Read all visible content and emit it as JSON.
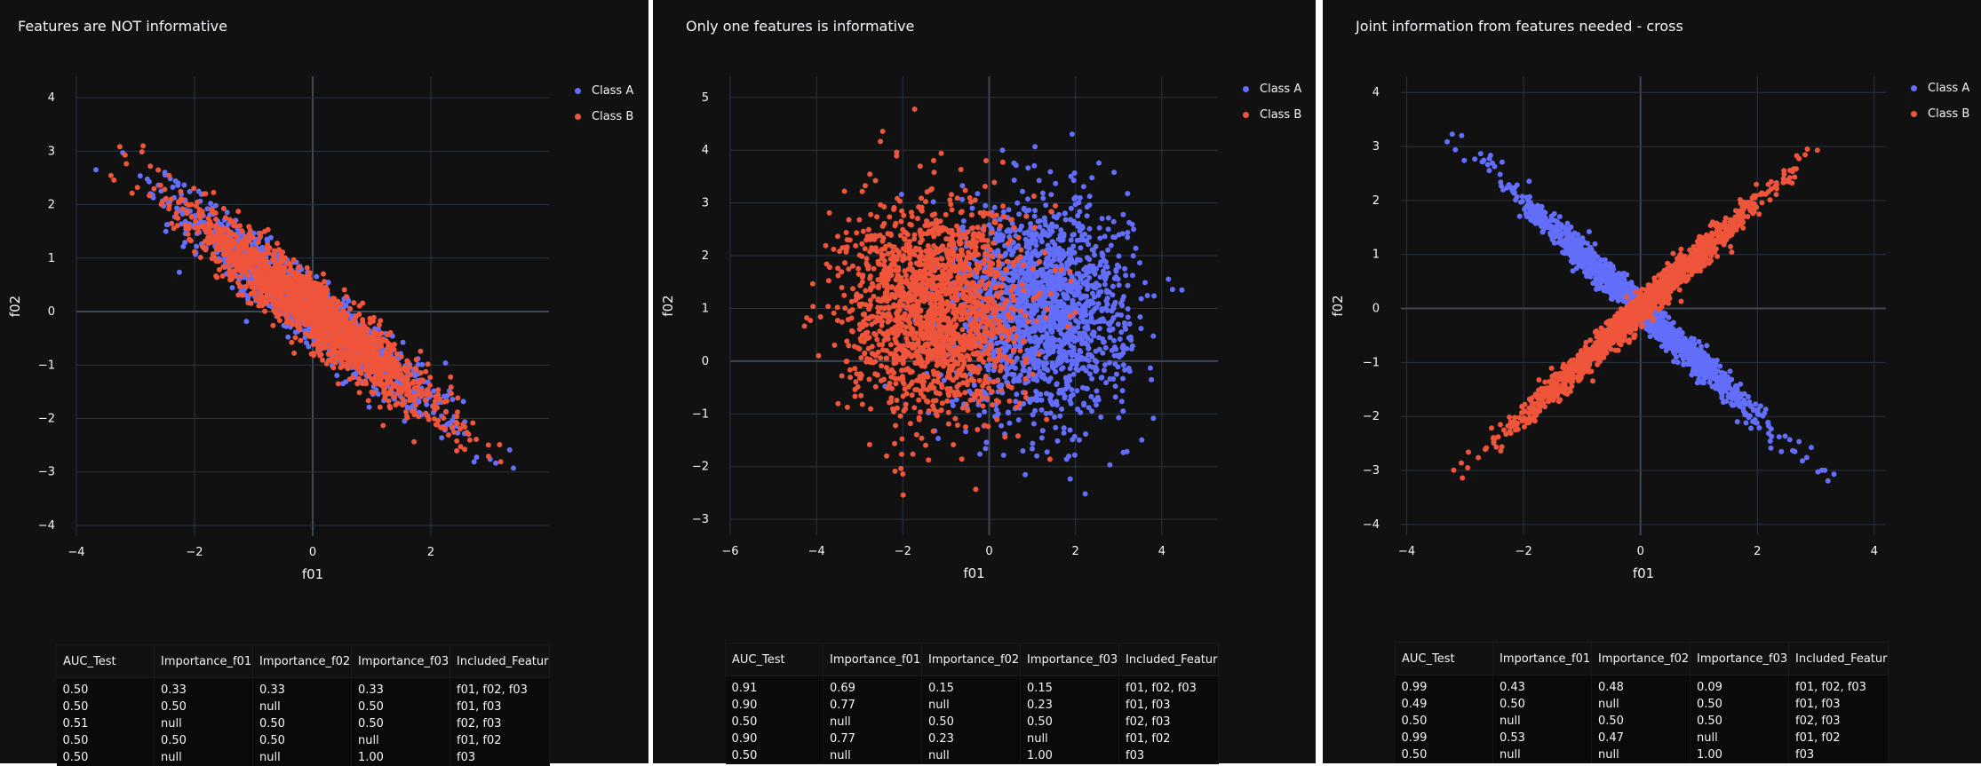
{
  "chart_data": [
    {
      "type": "scatter",
      "title": "Features are NOT informative",
      "xlabel": "f01",
      "ylabel": "f02",
      "xlim": [
        -4,
        4
      ],
      "ylim": [
        -4.2,
        4.4
      ],
      "xticks": [
        -4,
        -2,
        0,
        2
      ],
      "yticks": [
        -4,
        -3,
        -2,
        -1,
        0,
        1,
        2,
        3,
        4
      ],
      "grid": true,
      "legend_position": "top-right",
      "series": [
        {
          "name": "Class A",
          "color": "#636efa",
          "shape": "band",
          "cx": 0,
          "cy": 0,
          "angle": -42,
          "sx": 1.4,
          "sy": 0.23,
          "n": 1400
        },
        {
          "name": "Class B",
          "color": "#ef553b",
          "shape": "band",
          "cx": 0,
          "cy": 0,
          "angle": -42,
          "sx": 1.4,
          "sy": 0.23,
          "n": 1800
        }
      ],
      "table": {
        "columns": [
          "AUC_Test",
          "Importance_f01",
          "Importance_f02",
          "Importance_f03",
          "Included_Features"
        ],
        "rows": [
          [
            "0.50",
            "0.33",
            "0.33",
            "0.33",
            "f01, f02, f03"
          ],
          [
            "0.50",
            "0.50",
            "null",
            "0.50",
            "f01, f03"
          ],
          [
            "0.51",
            "null",
            "0.50",
            "0.50",
            "f02, f03"
          ],
          [
            "0.50",
            "0.50",
            "0.50",
            "null",
            "f01, f02"
          ],
          [
            "0.50",
            "null",
            "null",
            "1.00",
            "f03"
          ]
        ]
      }
    },
    {
      "type": "scatter",
      "title": "Only one features is informative",
      "xlabel": "f01",
      "ylabel": "f02",
      "xlim": [
        -6,
        5.3
      ],
      "ylim": [
        -3.3,
        5.4
      ],
      "xticks": [
        -6,
        -4,
        -2,
        0,
        2,
        4
      ],
      "yticks": [
        -3,
        -2,
        -1,
        0,
        1,
        2,
        3,
        4,
        5
      ],
      "grid": true,
      "legend_position": "top-right",
      "series": [
        {
          "name": "Class A",
          "color": "#636efa",
          "shape": "blob",
          "cx": 1.2,
          "cy": 1.0,
          "sx": 1.0,
          "sy": 1.0,
          "n": 1800
        },
        {
          "name": "Class B",
          "color": "#ef553b",
          "shape": "blob",
          "cx": -1.3,
          "cy": 1.0,
          "sx": 1.0,
          "sy": 1.0,
          "n": 1800
        }
      ],
      "table": {
        "columns": [
          "AUC_Test",
          "Importance_f01",
          "Importance_f02",
          "Importance_f03",
          "Included_Features"
        ],
        "rows": [
          [
            "0.91",
            "0.69",
            "0.15",
            "0.15",
            "f01, f02, f03"
          ],
          [
            "0.90",
            "0.77",
            "null",
            "0.23",
            "f01, f03"
          ],
          [
            "0.50",
            "null",
            "0.50",
            "0.50",
            "f02, f03"
          ],
          [
            "0.90",
            "0.77",
            "0.23",
            "null",
            "f01, f02"
          ],
          [
            "0.50",
            "null",
            "null",
            "1.00",
            "f03"
          ]
        ]
      }
    },
    {
      "type": "scatter",
      "title": "Joint information from features needed - cross",
      "xlabel": "f01",
      "ylabel": "f02",
      "xlim": [
        -4.1,
        4.2
      ],
      "ylim": [
        -4.2,
        4.3
      ],
      "xticks": [
        -4,
        -2,
        0,
        2,
        4
      ],
      "yticks": [
        -4,
        -3,
        -2,
        -1,
        0,
        1,
        2,
        3,
        4
      ],
      "grid": true,
      "legend_position": "top-right",
      "series": [
        {
          "name": "Class A",
          "color": "#636efa",
          "shape": "band",
          "cx": 0,
          "cy": 0,
          "angle": -45,
          "sx": 1.4,
          "sy": 0.1,
          "n": 1700
        },
        {
          "name": "Class B",
          "color": "#ef553b",
          "shape": "band",
          "cx": 0,
          "cy": 0,
          "angle": 45,
          "sx": 1.4,
          "sy": 0.1,
          "n": 1700
        }
      ],
      "table": {
        "columns": [
          "AUC_Test",
          "Importance_f01",
          "Importance_f02",
          "Importance_f03",
          "Included_Features"
        ],
        "rows": [
          [
            "0.99",
            "0.43",
            "0.48",
            "0.09",
            "f01, f02, f03"
          ],
          [
            "0.49",
            "0.50",
            "null",
            "0.50",
            "f01, f03"
          ],
          [
            "0.50",
            "null",
            "0.50",
            "0.50",
            "f02, f03"
          ],
          [
            "0.99",
            "0.53",
            "0.47",
            "null",
            "f01, f02"
          ],
          [
            "0.50",
            "null",
            "null",
            "1.00",
            "f03"
          ]
        ]
      }
    }
  ]
}
